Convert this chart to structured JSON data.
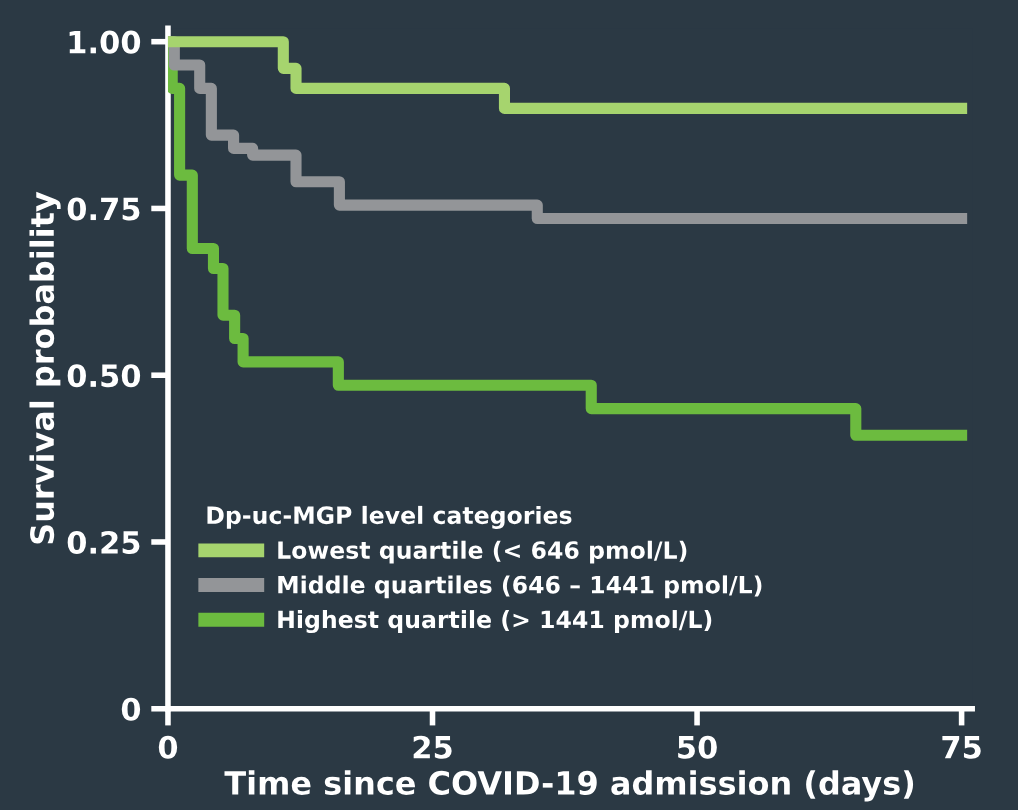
{
  "chart_data": {
    "type": "step",
    "xlabel": "Time since COVID-19 admission (days)",
    "ylabel": "Survival probability",
    "legend_title": "Dp-uc-MGP level categories",
    "legend": "bottom left",
    "grid": false,
    "marker": "none",
    "line_style": "solid",
    "xlim": [
      0,
      76
    ],
    "ylim": [
      0,
      1.02
    ],
    "xticks": [
      0,
      25,
      50,
      75
    ],
    "yticks": [
      {
        "value": 0,
        "label": "0"
      },
      {
        "value": 0.25,
        "label": "0.25"
      },
      {
        "value": 0.5,
        "label": "0.50"
      },
      {
        "value": 0.75,
        "label": "0.75"
      },
      {
        "value": 1,
        "label": "1.00"
      }
    ],
    "series": [
      {
        "name": "Lowest quartile (< 646 pmol/L)",
        "color": "#a6d46e",
        "x": [
          0,
          10.9,
          12.1,
          31.8,
          75
        ],
        "values": [
          1.0,
          0.96,
          0.93,
          0.9,
          0.9
        ]
      },
      {
        "name": "Middle quartiles (646 – 1441 pmol/L)",
        "color": "#939598",
        "x": [
          0,
          0.6,
          3.0,
          4.1,
          6.2,
          8.0,
          12.1,
          16.2,
          34.9,
          75
        ],
        "values": [
          1.0,
          0.965,
          0.93,
          0.86,
          0.84,
          0.83,
          0.79,
          0.755,
          0.735,
          0.735
        ]
      },
      {
        "name": "Highest quartile (> 1441 pmol/L)",
        "color": "#6cbb3f",
        "x": [
          0,
          0.4,
          1.1,
          2.3,
          4.3,
          5.2,
          6.3,
          7.1,
          16.1,
          40,
          65,
          75
        ],
        "values": [
          1.0,
          0.93,
          0.8,
          0.69,
          0.66,
          0.59,
          0.555,
          0.52,
          0.485,
          0.45,
          0.41,
          0.41
        ]
      }
    ]
  }
}
